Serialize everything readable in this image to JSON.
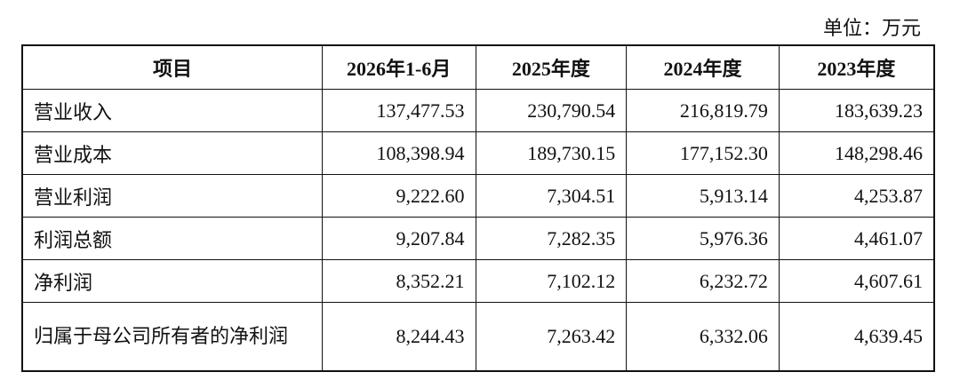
{
  "unit": "单位：万元",
  "table": {
    "header": [
      "项目",
      "2026年1-6月",
      "2025年度",
      "2024年度",
      "2023年度"
    ],
    "rows": [
      [
        "营业收入",
        "137,477.53",
        "230,790.54",
        "216,819.79",
        "183,639.23"
      ],
      [
        "营业成本",
        "108,398.94",
        "189,730.15",
        "177,152.30",
        "148,298.46"
      ],
      [
        "营业利润",
        "9,222.60",
        "7,304.51",
        "5,913.14",
        "4,253.87"
      ],
      [
        "利润总额",
        "9,207.84",
        "7,282.35",
        "5,976.36",
        "4,461.07"
      ],
      [
        "净利润",
        "8,352.21",
        "7,102.12",
        "6,232.72",
        "4,607.61"
      ],
      [
        "归属于母公司所有者的净利润",
        "8,244.43",
        "7,263.42",
        "6,332.06",
        "4,639.45"
      ]
    ]
  }
}
